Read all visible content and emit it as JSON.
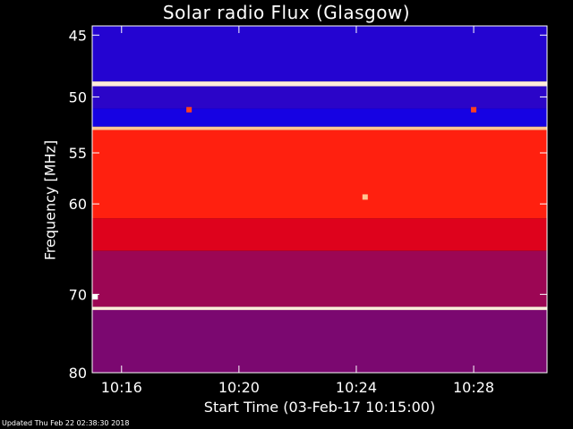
{
  "chart_data": {
    "type": "heatmap",
    "title": "Solar radio Flux (Glasgow)",
    "xlabel": "Start Time (03-Feb-17 10:15:00)",
    "ylabel": "Frequency [MHz]",
    "footer": "Updated Thu Feb 22 02:38:30 2018",
    "x_start": "10:15:00",
    "x_end": "10:30:30",
    "x_unit": "minutes after 10:00",
    "xlim": [
      15.0,
      30.5
    ],
    "ylim": [
      44.3,
      80.0
    ],
    "y_scale": "log",
    "x_ticks": [
      "10:16",
      "10:20",
      "10:24",
      "10:28"
    ],
    "y_ticks": [
      "45",
      "50",
      "55",
      "60",
      "70",
      "80"
    ],
    "colormap": [
      "#0000ff",
      "#5a0a8c",
      "#ff0000",
      "#ffa04a",
      "#ffffff"
    ],
    "frequency_bands": [
      {
        "from": 44.3,
        "to": 48.7,
        "level": 0.1
      },
      {
        "from": 48.7,
        "to": 49.1,
        "level": 0.95
      },
      {
        "from": 49.1,
        "to": 51.0,
        "level": 0.12
      },
      {
        "from": 51.0,
        "to": 52.6,
        "level": 0.06
      },
      {
        "from": 52.6,
        "to": 52.9,
        "level": 0.85
      },
      {
        "from": 52.9,
        "to": 61.5,
        "level": 0.55
      },
      {
        "from": 61.5,
        "to": 65.0,
        "level": 0.45
      },
      {
        "from": 65.0,
        "to": 71.5,
        "level": 0.35
      },
      {
        "from": 71.5,
        "to": 71.9,
        "level": 0.95
      },
      {
        "from": 71.9,
        "to": 80.0,
        "level": 0.3
      }
    ],
    "bursts": [
      {
        "time": 18.3,
        "freq": 51.1,
        "level": 0.6
      },
      {
        "time": 28.0,
        "freq": 51.1,
        "level": 0.6
      },
      {
        "time": 24.3,
        "freq": 59.3,
        "level": 0.85
      },
      {
        "time": 15.1,
        "freq": 70.3,
        "level": 1.0
      }
    ]
  }
}
